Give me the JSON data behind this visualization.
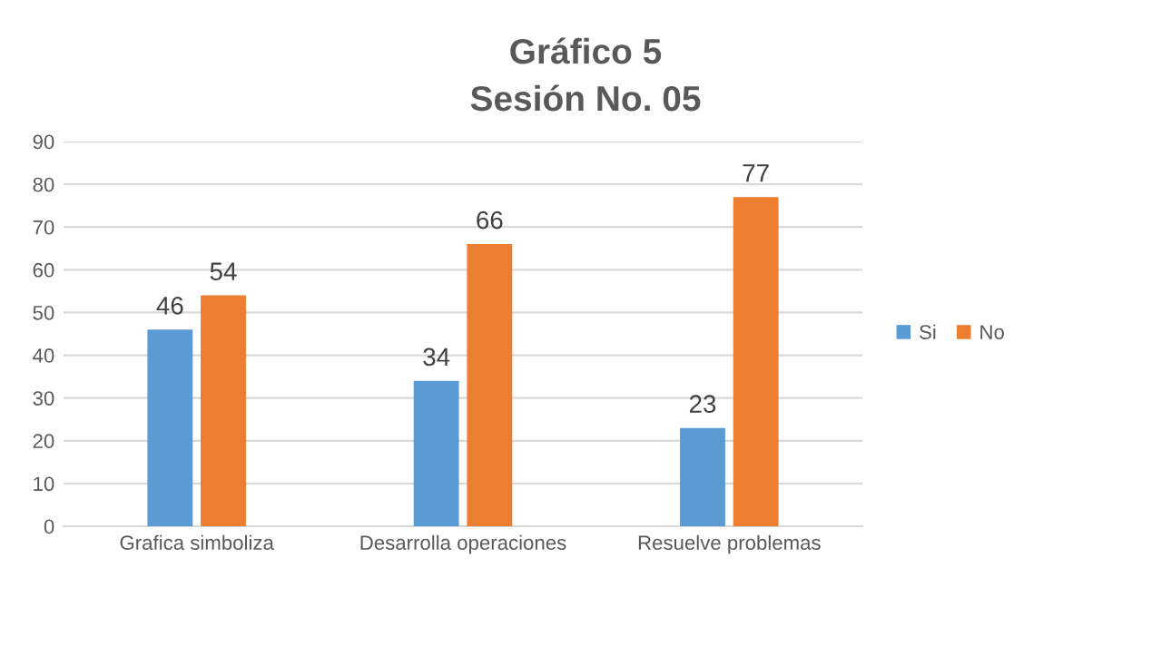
{
  "chart_data": {
    "type": "bar",
    "title": "Gráfico 5",
    "subtitle": "Sesión No. 05",
    "categories": [
      "Grafica simboliza",
      "Desarrolla operaciones",
      "Resuelve problemas"
    ],
    "series": [
      {
        "name": "Si",
        "color": "#5b9bd5",
        "values": [
          46,
          34,
          23
        ]
      },
      {
        "name": "No",
        "color": "#ed7d31",
        "values": [
          54,
          66,
          77
        ]
      }
    ],
    "ylim": [
      0,
      90
    ],
    "yticks": [
      0,
      10,
      20,
      30,
      40,
      50,
      60,
      70,
      80,
      90
    ],
    "grid": "y",
    "legend": "right",
    "data_labels": true
  }
}
